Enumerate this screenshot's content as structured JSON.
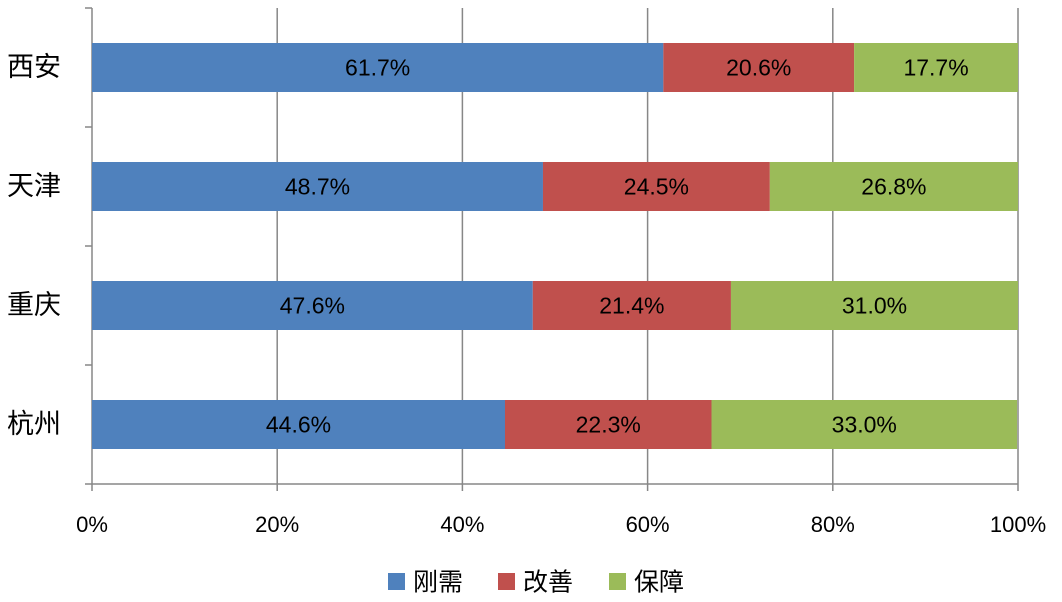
{
  "chart_data": {
    "type": "bar",
    "orientation": "horizontal",
    "stacked": true,
    "percent_stacked": true,
    "categories": [
      "西安",
      "天津",
      "重庆",
      "杭州"
    ],
    "series": [
      {
        "name": "刚需",
        "color": "#4f81bd",
        "values": [
          61.7,
          48.7,
          47.6,
          44.6
        ],
        "labels": [
          "61.7%",
          "48.7%",
          "47.6%",
          "44.6%"
        ]
      },
      {
        "name": "改善",
        "color": "#c0504d",
        "values": [
          20.6,
          24.5,
          21.4,
          22.3
        ],
        "labels": [
          "20.6%",
          "24.5%",
          "21.4%",
          "22.3%"
        ]
      },
      {
        "name": "保障",
        "color": "#9bbb59",
        "values": [
          17.7,
          26.8,
          31.0,
          33.0
        ],
        "labels": [
          "17.7%",
          "26.8%",
          "31.0%",
          "33.0%"
        ]
      }
    ],
    "xlim": [
      0,
      100
    ],
    "xticks": [
      0,
      20,
      40,
      60,
      80,
      100
    ],
    "xtick_labels": [
      "0%",
      "20%",
      "40%",
      "60%",
      "80%",
      "100%"
    ],
    "grid": "vertical",
    "legend": "bottom"
  }
}
